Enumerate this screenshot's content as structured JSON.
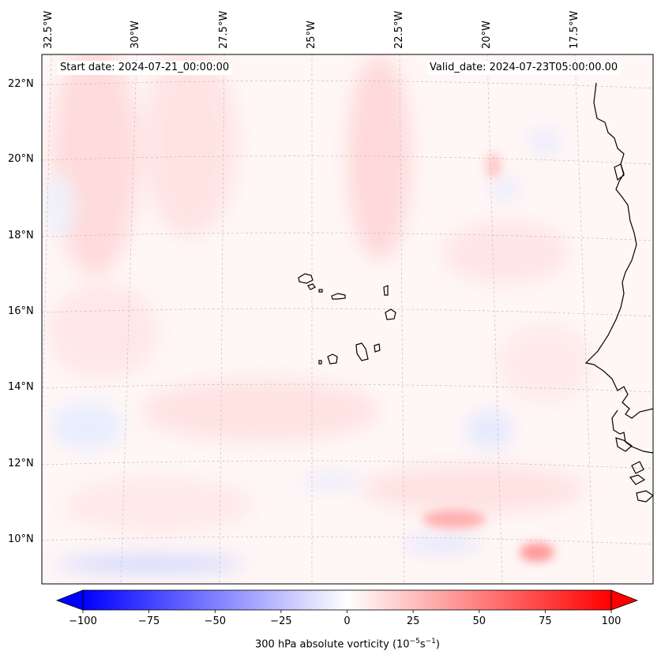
{
  "header": {
    "start_date": "Start date: 2024-07-21_00:00:00",
    "valid_date": "Valid_date: 2024-07-23T05:00:00.00"
  },
  "map": {
    "longitude_labels": [
      "32.5°W",
      "30°W",
      "27.5°W",
      "25°W",
      "22.5°W",
      "20°W",
      "17.5°W"
    ],
    "latitude_labels": [
      "22°N",
      "20°N",
      "18°N",
      "16°N",
      "14°N",
      "12°N",
      "10°N"
    ],
    "field": "300 hPa absolute vorticity",
    "colors": {
      "negative": "#0000ff",
      "neutral": "#ffffff",
      "positive": "#ff0000",
      "coastline": "#000000",
      "gridline": "#b0b0b0"
    }
  },
  "colorbar": {
    "ticks": [
      "−100",
      "−75",
      "−50",
      "−25",
      "0",
      "25",
      "50",
      "75",
      "100"
    ],
    "min": -100,
    "max": 100,
    "label_main": "300 hPa absolute vorticity (10",
    "label_exp1": "−5",
    "label_mid": "s",
    "label_exp2": "−1",
    "label_end": ")"
  }
}
